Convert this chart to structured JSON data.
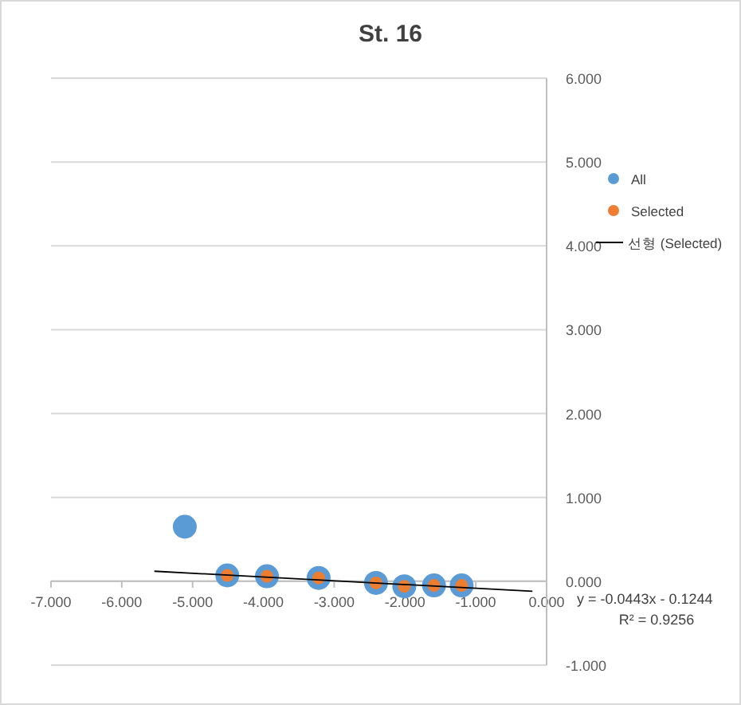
{
  "chart_data": {
    "type": "scatter",
    "title": "St. 16",
    "xlim": [
      -7,
      0
    ],
    "xticks": [
      {
        "value": -7,
        "label": "-7.000"
      },
      {
        "value": -6,
        "label": "-6.000"
      },
      {
        "value": -5,
        "label": "-5.000"
      },
      {
        "value": -4,
        "label": "-4.000"
      },
      {
        "value": -3,
        "label": "-3.000"
      },
      {
        "value": -2,
        "label": "-2.000"
      },
      {
        "value": -1,
        "label": "-1.000"
      },
      {
        "value": 0,
        "label": "0.000"
      }
    ],
    "ylim": [
      -1,
      6
    ],
    "yticks": [
      {
        "value": -1,
        "label": "-1.000"
      },
      {
        "value": 0,
        "label": "0.000"
      },
      {
        "value": 1,
        "label": "1.000"
      },
      {
        "value": 2,
        "label": "2.000"
      },
      {
        "value": 3,
        "label": "3.000"
      },
      {
        "value": 4,
        "label": "4.000"
      },
      {
        "value": 5,
        "label": "5.000"
      },
      {
        "value": 6,
        "label": "6.000"
      }
    ],
    "grid": "y",
    "legend": "right",
    "series": [
      {
        "name": "All",
        "color": "#5b9bd5",
        "marker": "circle",
        "x": [
          -5.11,
          -4.51,
          -3.95,
          -3.22,
          -2.41,
          -2.01,
          -1.59,
          -1.2
        ],
        "values": [
          0.65,
          0.07,
          0.06,
          0.04,
          -0.02,
          -0.06,
          -0.05,
          -0.05
        ]
      },
      {
        "name": "Selected",
        "color": "#ed7d31",
        "marker": "circle",
        "x": [
          -4.51,
          -3.95,
          -3.22,
          -2.41,
          -2.01,
          -1.59,
          -1.2
        ],
        "values": [
          0.07,
          0.06,
          0.04,
          -0.02,
          -0.06,
          -0.05,
          -0.05
        ]
      },
      {
        "name": "선형 (Selected)",
        "type": "line",
        "color": "#000000",
        "line_style": "solid",
        "x": [
          -5.54,
          -0.2
        ],
        "values": [
          0.12,
          -0.12
        ]
      }
    ],
    "annotations": [
      "y = -0.0443x - 0.1244",
      "R² = 0.9256"
    ]
  }
}
